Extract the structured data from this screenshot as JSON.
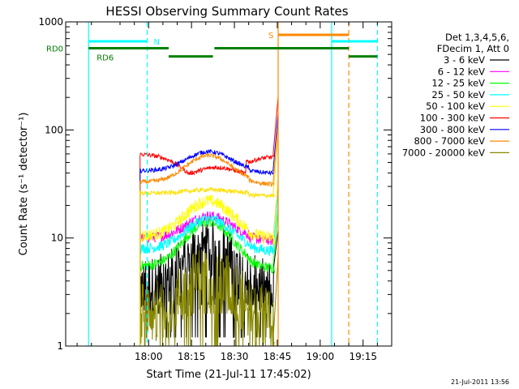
{
  "chart_data": {
    "type": "line",
    "title": "HESSI Observing Summary Count Rates",
    "xlabel": "Start Time (21-Jul-11 17:45:02)",
    "ylabel": "Count Rate (s⁻¹ detector⁻¹)",
    "y_scale": "log",
    "ylim": [
      1,
      1000
    ],
    "yticks": [
      {
        "v": 1,
        "label": "1"
      },
      {
        "v": 10,
        "label": "10"
      },
      {
        "v": 100,
        "label": "100"
      },
      {
        "v": 1000,
        "label": "1000"
      }
    ],
    "xticks": [
      {
        "t": 15,
        "label": "18:00"
      },
      {
        "t": 30,
        "label": "18:15"
      },
      {
        "t": 45,
        "label": "18:30"
      },
      {
        "t": 60,
        "label": "18:45"
      },
      {
        "t": 75,
        "label": "19:00"
      },
      {
        "t": 90,
        "label": "19:15"
      }
    ],
    "legend_header": [
      "Det 1,3,4,5,6,",
      "FDecim 1, Att 0"
    ],
    "series": [
      {
        "name": "3 - 6 keV",
        "color": "#000000",
        "base": 3.5,
        "peak": 8,
        "noise": 0.28,
        "floor": 1.2
      },
      {
        "name": "6 - 12 keV",
        "color": "#ff00ff",
        "base": 10,
        "peak": 16,
        "noise": 0.05
      },
      {
        "name": "12 - 25 keV",
        "color": "#00ff00",
        "base": 5.5,
        "peak": 14,
        "noise": 0.05
      },
      {
        "name": "25 - 50 keV",
        "color": "#00ffff",
        "base": 8,
        "peak": 15,
        "noise": 0.05
      },
      {
        "name": "50 - 100 keV",
        "color": "#ffff00",
        "base": 10.5,
        "peak": 22,
        "noise": 0.06
      },
      {
        "name": "100 - 300 keV",
        "color": "#ff0000",
        "base": 60,
        "peak": 50,
        "noise": 0.02,
        "dip": 0.48
      },
      {
        "name": "300 - 800 keV",
        "color": "#0000ff",
        "base": 42,
        "peak": 63,
        "noise": 0.02
      },
      {
        "name": "800 - 7000 keV",
        "color": "#ff8800",
        "base": 33,
        "peak": 58,
        "noise": 0.02
      },
      {
        "name": "7000 - 20000 keV",
        "color": "#888800",
        "base": 2.0,
        "peak": 4.5,
        "noise": 0.3,
        "floor": 1.0
      },
      {
        "name": "",
        "color": "#ffe000",
        "base": 26,
        "peak": 28,
        "noise": 0.02
      }
    ],
    "data_window": {
      "start": 12,
      "end": 59,
      "rise_start": 58.5,
      "rise_end": 60.3
    },
    "flags": [
      {
        "label": "N",
        "color": "#00ffff",
        "log_y": 2.82,
        "segments": [
          [
            -6,
            14.5
          ],
          [
            79,
            95
          ]
        ]
      },
      {
        "label": "S",
        "color": "#ff8800",
        "log_y": 2.88,
        "segments": [
          [
            60.3,
            85
          ]
        ]
      },
      {
        "label": "RD0",
        "color": "#008000",
        "log_y": 2.756,
        "segments": [
          [
            -6,
            22
          ],
          [
            38,
            85
          ]
        ]
      },
      {
        "label": "RD6",
        "color": "#008000",
        "log_y": 2.68,
        "segments": [
          [
            22,
            37.5
          ],
          [
            85,
            95
          ]
        ]
      }
    ],
    "vlines": [
      {
        "t": -6,
        "color": "#00ffff",
        "dash": false
      },
      {
        "t": 14.5,
        "color": "#00ffff",
        "dash": true
      },
      {
        "t": 60.3,
        "color": "#ff8800",
        "dash": false
      },
      {
        "t": 79,
        "color": "#00ffff",
        "dash": false
      },
      {
        "t": 85,
        "color": "#ff8800",
        "dash": true
      },
      {
        "t": 95,
        "color": "#00ffff",
        "dash": true
      }
    ]
  },
  "footer": {
    "timestamp": "21-Jul-2011 13:56"
  }
}
